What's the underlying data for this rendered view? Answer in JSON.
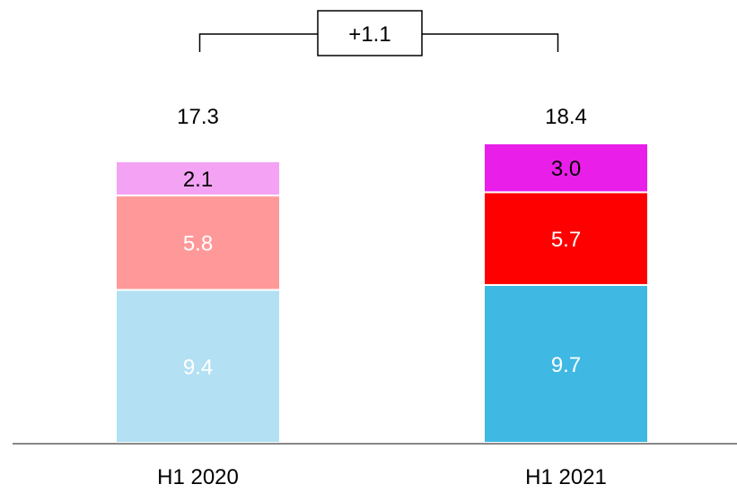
{
  "chart_data": {
    "type": "bar",
    "stacked": true,
    "categories": [
      "H1 2020",
      "H1 2021"
    ],
    "series": [
      {
        "values": [
          9.4,
          9.7
        ],
        "colors": [
          "#b3e0f3",
          "#3fb8e3"
        ],
        "label_color": "#ffffff"
      },
      {
        "values": [
          5.8,
          5.7
        ],
        "colors": [
          "#ff9999",
          "#ff0000"
        ],
        "label_color": "#ffffff"
      },
      {
        "values": [
          2.1,
          3.0
        ],
        "colors": [
          "#f4a3f4",
          "#e91ee9"
        ],
        "label_color": "#000000"
      }
    ],
    "totals": [
      "17.3",
      "18.4"
    ],
    "value_labels": [
      [
        "9.4",
        "9.7"
      ],
      [
        "5.8",
        "5.7"
      ],
      [
        "2.1",
        "3.0"
      ]
    ],
    "difference": {
      "label": "+1.1",
      "from": "H1 2020",
      "to": "H1 2021"
    },
    "ylim": [
      0,
      18.4
    ],
    "grid": false,
    "legend": "none",
    "axis_color": "#888888"
  }
}
